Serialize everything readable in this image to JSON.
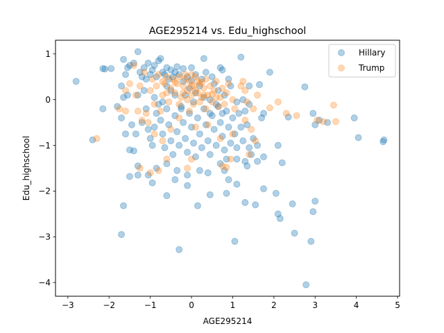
{
  "chart_data": {
    "type": "scatter",
    "title": "AGE295214 vs. Edu_highschool",
    "xlabel": "AGE295214",
    "ylabel": "Edu_highschool",
    "xlim": [
      -3.3,
      5.05
    ],
    "ylim": [
      -4.3,
      1.3
    ],
    "xticks": [
      -3,
      -2,
      -1,
      0,
      1,
      2,
      3,
      4,
      5
    ],
    "yticks": [
      -4,
      -3,
      -2,
      -1,
      0,
      1
    ],
    "xtick_labels": [
      "−3",
      "−2",
      "−1",
      "0",
      "1",
      "2",
      "3",
      "4",
      "5"
    ],
    "ytick_labels": [
      "−4",
      "−3",
      "−2",
      "−1",
      "0",
      "1"
    ],
    "grid": false,
    "legend_placement": "top-right",
    "series": [
      {
        "name": "Hillary",
        "color": "#1f77b4",
        "opacity": 0.35,
        "points": [
          [
            -2.8,
            0.4
          ],
          [
            -2.15,
            0.68
          ],
          [
            -2.1,
            0.67
          ],
          [
            -1.95,
            0.68
          ],
          [
            -1.7,
            0.3
          ],
          [
            -1.65,
            0.88
          ],
          [
            -1.6,
            0.55
          ],
          [
            -1.55,
            0.7
          ],
          [
            -1.5,
            0.75
          ],
          [
            -1.4,
            0.8
          ],
          [
            -1.3,
            1.05
          ],
          [
            -1.25,
            0.6
          ],
          [
            -1.2,
            0.5
          ],
          [
            -1.15,
            0.7
          ],
          [
            -1.1,
            0.45
          ],
          [
            -1.05,
            0.8
          ],
          [
            -1.0,
            0.55
          ],
          [
            -0.95,
            0.65
          ],
          [
            -0.9,
            0.75
          ],
          [
            -0.85,
            0.5
          ],
          [
            -0.8,
            0.85
          ],
          [
            -0.75,
            0.9
          ],
          [
            -0.7,
            0.6
          ],
          [
            -0.65,
            0.55
          ],
          [
            -0.6,
            0.7
          ],
          [
            -0.55,
            0.45
          ],
          [
            -0.5,
            0.65
          ],
          [
            -0.45,
            0.5
          ],
          [
            -0.4,
            0.6
          ],
          [
            -0.35,
            0.72
          ],
          [
            -0.3,
            0.55
          ],
          [
            -0.2,
            0.68
          ],
          [
            -0.1,
            0.5
          ],
          [
            0.0,
            0.7
          ],
          [
            0.1,
            0.55
          ],
          [
            0.3,
            0.9
          ],
          [
            0.35,
            0.6
          ],
          [
            0.5,
            0.5
          ],
          [
            0.7,
            0.7
          ],
          [
            0.75,
            0.65
          ],
          [
            0.9,
            0.45
          ],
          [
            1.2,
            0.93
          ],
          [
            1.4,
            0.3
          ],
          [
            1.65,
            0.33
          ],
          [
            1.9,
            0.6
          ],
          [
            -1.65,
            0.05
          ],
          [
            -1.55,
            0.1
          ],
          [
            -1.45,
            -0.55
          ],
          [
            -1.8,
            -0.15
          ],
          [
            -1.7,
            -0.4
          ],
          [
            -1.6,
            -0.75
          ],
          [
            -1.5,
            -1.1
          ],
          [
            -1.35,
            -0.75
          ],
          [
            -1.4,
            -1.12
          ],
          [
            -1.2,
            -0.5
          ],
          [
            -1.1,
            -0.2
          ],
          [
            -1.05,
            -0.65
          ],
          [
            -1.0,
            -0.85
          ],
          [
            -0.95,
            -1.0
          ],
          [
            -0.9,
            -0.6
          ],
          [
            -0.85,
            -0.3
          ],
          [
            -0.8,
            -0.1
          ],
          [
            -0.75,
            -0.45
          ],
          [
            -0.7,
            -0.75
          ],
          [
            -0.65,
            -1.05
          ],
          [
            -0.6,
            -0.2
          ],
          [
            -0.55,
            -0.55
          ],
          [
            -0.5,
            -0.9
          ],
          [
            -0.45,
            -1.2
          ],
          [
            -0.4,
            -0.35
          ],
          [
            -0.35,
            -0.7
          ],
          [
            -0.3,
            -1.0
          ],
          [
            -0.25,
            -0.15
          ],
          [
            -0.2,
            -0.5
          ],
          [
            -0.15,
            -0.85
          ],
          [
            -0.1,
            -1.15
          ],
          [
            -0.05,
            -0.3
          ],
          [
            0.0,
            -0.6
          ],
          [
            0.05,
            -0.95
          ],
          [
            0.1,
            -1.25
          ],
          [
            0.15,
            -0.4
          ],
          [
            0.2,
            -0.75
          ],
          [
            0.25,
            -1.05
          ],
          [
            0.3,
            -0.2
          ],
          [
            0.35,
            -0.55
          ],
          [
            0.4,
            -0.9
          ],
          [
            0.45,
            -1.2
          ],
          [
            0.5,
            -0.35
          ],
          [
            0.55,
            -0.65
          ],
          [
            0.6,
            -1.0
          ],
          [
            0.65,
            -0.15
          ],
          [
            0.7,
            -0.5
          ],
          [
            0.75,
            -0.8
          ],
          [
            0.8,
            -1.1
          ],
          [
            0.85,
            -0.25
          ],
          [
            0.9,
            -0.6
          ],
          [
            0.95,
            -0.95
          ],
          [
            1.0,
            -0.4
          ],
          [
            1.05,
            -0.75
          ],
          [
            1.1,
            -1.05
          ],
          [
            1.15,
            -0.3
          ],
          [
            1.2,
            -0.6
          ],
          [
            1.25,
            -0.9
          ],
          [
            1.3,
            -0.25
          ],
          [
            1.35,
            -0.55
          ],
          [
            1.4,
            -1.05
          ],
          [
            1.45,
            -1.2
          ],
          [
            1.5,
            -0.85
          ],
          [
            1.6,
            -1.0
          ],
          [
            1.7,
            -0.4
          ],
          [
            1.75,
            -1.25
          ],
          [
            1.6,
            -1.35
          ],
          [
            1.3,
            -1.35
          ],
          [
            1.35,
            -1.45
          ],
          [
            1.1,
            -1.3
          ],
          [
            0.85,
            -1.3
          ],
          [
            0.8,
            -1.55
          ],
          [
            0.9,
            -1.75
          ],
          [
            -1.3,
            -1.45
          ],
          [
            -1.3,
            -1.65
          ],
          [
            -1.05,
            -1.65
          ],
          [
            -0.95,
            -1.82
          ],
          [
            -0.85,
            -1.5
          ],
          [
            -0.6,
            -1.4
          ],
          [
            -0.35,
            -1.55
          ],
          [
            -0.1,
            -1.65
          ],
          [
            0.2,
            -1.55
          ],
          [
            0.4,
            -1.6
          ],
          [
            0.7,
            -1.4
          ],
          [
            1.1,
            -1.85
          ],
          [
            -0.6,
            -2.1
          ],
          [
            -0.4,
            -1.75
          ],
          [
            -0.1,
            -1.88
          ],
          [
            0.15,
            -2.32
          ],
          [
            0.45,
            -2.08
          ],
          [
            0.85,
            -2.05
          ],
          [
            1.3,
            -2.25
          ],
          [
            1.55,
            -2.3
          ],
          [
            1.75,
            -1.95
          ],
          [
            2.05,
            -2.05
          ],
          [
            2.1,
            -2.5
          ],
          [
            2.15,
            -2.6
          ],
          [
            2.45,
            -2.28
          ],
          [
            -1.65,
            -2.32
          ],
          [
            -1.7,
            -2.95
          ],
          [
            2.5,
            -2.92
          ],
          [
            2.9,
            -3.1
          ],
          [
            3.0,
            -2.22
          ],
          [
            2.95,
            -2.45
          ],
          [
            1.05,
            -3.1
          ],
          [
            -0.3,
            -3.28
          ],
          [
            2.78,
            -4.05
          ],
          [
            2.1,
            -1.0
          ],
          [
            2.2,
            -1.38
          ],
          [
            2.35,
            -0.38
          ],
          [
            2.75,
            0.28
          ],
          [
            2.95,
            -0.3
          ],
          [
            3.0,
            -0.55
          ],
          [
            3.1,
            -0.45
          ],
          [
            3.3,
            -0.5
          ],
          [
            3.95,
            -0.4
          ],
          [
            4.05,
            -0.83
          ],
          [
            4.65,
            -0.92
          ],
          [
            4.67,
            -0.88
          ],
          [
            -2.4,
            -0.88
          ],
          [
            -2.15,
            -0.2
          ],
          [
            -1.5,
            -1.68
          ],
          [
            1.75,
            -0.3
          ],
          [
            1.4,
            -0.1
          ],
          [
            1.25,
            0.0
          ],
          [
            0.2,
            0.3
          ],
          [
            0.1,
            0.15
          ],
          [
            -0.05,
            0.25
          ],
          [
            -0.2,
            0.4
          ],
          [
            -0.4,
            0.1
          ],
          [
            -0.6,
            0.3
          ],
          [
            0.3,
            0.05
          ],
          [
            0.55,
            0.35
          ],
          [
            0.65,
            0.2
          ],
          [
            0.8,
            0.1
          ],
          [
            0.95,
            0.3
          ],
          [
            1.1,
            -0.05
          ],
          [
            -1.15,
            0.2
          ],
          [
            -1.3,
            0.1
          ],
          [
            -0.9,
            0.05
          ],
          [
            -0.7,
            -0.05
          ],
          [
            0.05,
            -0.05
          ],
          [
            0.45,
            0.0
          ],
          [
            0.6,
            -0.1
          ],
          [
            -0.25,
            -0.2
          ],
          [
            -0.5,
            0.2
          ],
          [
            0.0,
            0.42
          ],
          [
            0.25,
            0.45
          ],
          [
            -0.15,
            0.1
          ],
          [
            0.75,
            -0.3
          ],
          [
            0.45,
            -0.3
          ]
        ]
      },
      {
        "name": "Trump",
        "color": "#ff7f0e",
        "opacity": 0.3,
        "points": [
          [
            -2.3,
            -0.85
          ],
          [
            -1.75,
            -0.2
          ],
          [
            -1.6,
            -0.25
          ],
          [
            -1.6,
            0.2
          ],
          [
            -1.5,
            0.35
          ],
          [
            -1.4,
            0.75
          ],
          [
            -1.35,
            0.1
          ],
          [
            -1.3,
            -0.25
          ],
          [
            -1.25,
            0.3
          ],
          [
            -1.2,
            -0.45
          ],
          [
            -1.1,
            -0.3
          ],
          [
            -1.0,
            0.2
          ],
          [
            -0.95,
            0.45
          ],
          [
            -0.9,
            -0.1
          ],
          [
            -0.85,
            0.3
          ],
          [
            -0.8,
            0.55
          ],
          [
            -0.75,
            -0.25
          ],
          [
            -0.7,
            0.1
          ],
          [
            -0.65,
            0.35
          ],
          [
            -0.6,
            0.5
          ],
          [
            -0.55,
            -0.05
          ],
          [
            -0.5,
            0.25
          ],
          [
            -0.45,
            0.45
          ],
          [
            -0.4,
            0.15
          ],
          [
            -0.35,
            0.35
          ],
          [
            -0.3,
            0.5
          ],
          [
            -0.25,
            0.05
          ],
          [
            -0.2,
            0.3
          ],
          [
            -0.15,
            0.45
          ],
          [
            -0.1,
            0.2
          ],
          [
            -0.05,
            0.4
          ],
          [
            0.0,
            0.55
          ],
          [
            0.0,
            0.1
          ],
          [
            0.05,
            0.3
          ],
          [
            0.1,
            0.5
          ],
          [
            0.15,
            0.15
          ],
          [
            0.2,
            0.35
          ],
          [
            0.25,
            0.05
          ],
          [
            0.3,
            0.25
          ],
          [
            0.35,
            0.45
          ],
          [
            0.4,
            0.1
          ],
          [
            0.45,
            0.3
          ],
          [
            0.5,
            -0.05
          ],
          [
            0.55,
            0.2
          ],
          [
            0.6,
            0.4
          ],
          [
            0.65,
            -0.15
          ],
          [
            0.7,
            0.05
          ],
          [
            0.75,
            0.25
          ],
          [
            0.8,
            -0.1
          ],
          [
            0.85,
            0.15
          ],
          [
            0.9,
            0.35
          ],
          [
            1.0,
            0.0
          ],
          [
            1.05,
            -0.2
          ],
          [
            1.2,
            0.3
          ],
          [
            1.3,
            -0.45
          ],
          [
            1.35,
            -0.05
          ],
          [
            1.45,
            -0.65
          ],
          [
            1.5,
            -0.2
          ],
          [
            1.55,
            -0.9
          ],
          [
            1.4,
            -1.2
          ],
          [
            1.25,
            0.4
          ],
          [
            -0.1,
            0.0
          ],
          [
            0.05,
            -0.1
          ],
          [
            0.2,
            -0.05
          ],
          [
            -0.3,
            -0.1
          ],
          [
            0.35,
            -0.2
          ],
          [
            -0.05,
            -0.25
          ],
          [
            0.1,
            0.2
          ],
          [
            0.3,
            0.1
          ],
          [
            -0.2,
            0.15
          ],
          [
            0.15,
            0.4
          ],
          [
            0.0,
            0.3
          ],
          [
            0.25,
            0.38
          ],
          [
            -0.4,
            0.38
          ],
          [
            0.5,
            0.12
          ],
          [
            -0.6,
            0.15
          ],
          [
            0.6,
            0.05
          ],
          [
            -0.7,
            0.4
          ],
          [
            -1.15,
            0.6
          ],
          [
            -1.05,
            -0.5
          ],
          [
            -0.9,
            -0.75
          ],
          [
            -0.7,
            -0.9
          ],
          [
            -0.5,
            -0.65
          ],
          [
            -0.3,
            -0.4
          ],
          [
            0.1,
            -0.6
          ],
          [
            0.4,
            -0.55
          ],
          [
            0.7,
            -0.85
          ],
          [
            1.0,
            -0.75
          ],
          [
            -0.6,
            -1.3
          ],
          [
            -0.8,
            -1.55
          ],
          [
            -1.0,
            -1.6
          ],
          [
            -1.25,
            -1.5
          ],
          [
            0.0,
            -1.3
          ],
          [
            -0.1,
            -1.5
          ],
          [
            0.85,
            -1.48
          ],
          [
            0.75,
            -1.45
          ],
          [
            0.95,
            -1.3
          ],
          [
            2.1,
            -0.05
          ],
          [
            2.3,
            -0.3
          ],
          [
            2.55,
            -0.35
          ],
          [
            3.05,
            -0.45
          ],
          [
            3.2,
            -0.48
          ],
          [
            3.45,
            -0.12
          ],
          [
            3.5,
            -0.48
          ],
          [
            1.9,
            -0.18
          ],
          [
            1.6,
            0.1
          ],
          [
            1.3,
            0.2
          ],
          [
            -0.15,
            0.55
          ]
        ]
      }
    ]
  }
}
